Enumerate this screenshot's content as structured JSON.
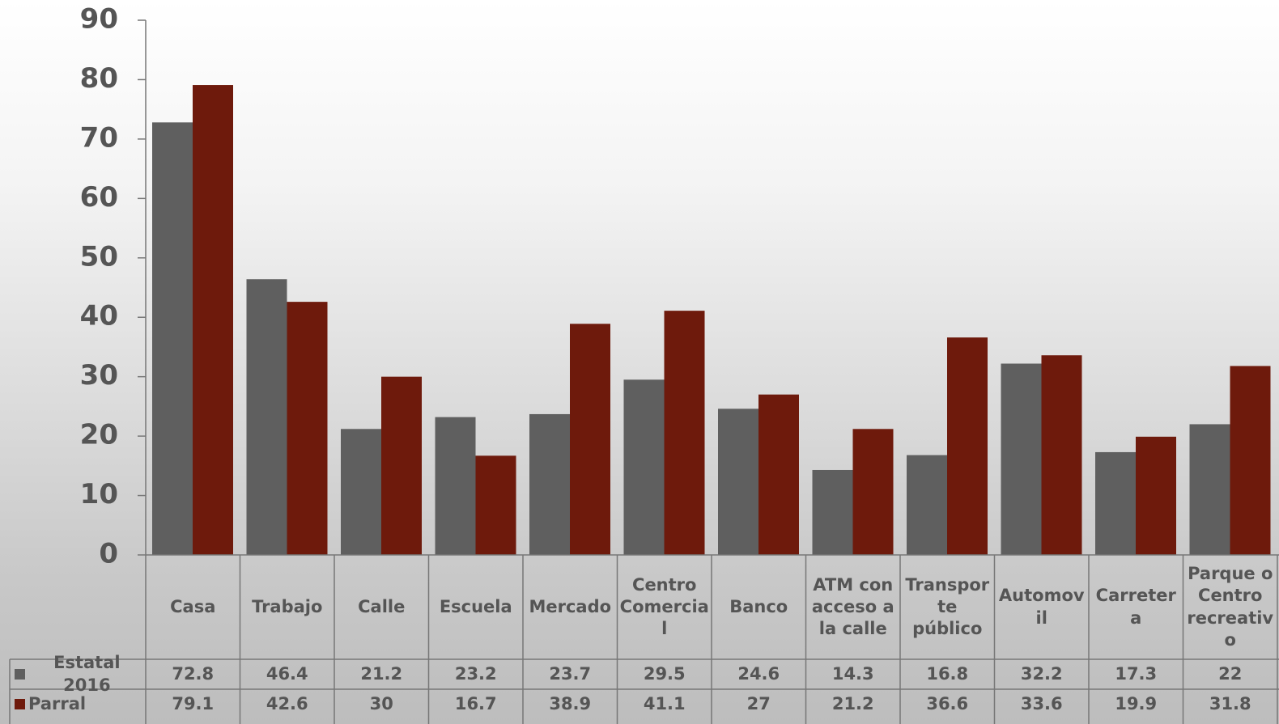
{
  "chart_data": {
    "type": "bar",
    "categories": [
      "Casa",
      "Trabajo",
      "Calle",
      "Escuela",
      "Mercado",
      "Centro Comercial",
      "Banco",
      "ATM con acceso a la calle",
      "Transporte público",
      "Automovil",
      "Carretera",
      "Parque o Centro recreativo"
    ],
    "series": [
      {
        "name": "Estatal 2016",
        "color": "#5f5f5f",
        "values": [
          72.8,
          46.4,
          21.2,
          23.2,
          23.7,
          29.5,
          24.6,
          14.3,
          16.8,
          32.2,
          17.3,
          22
        ]
      },
      {
        "name": "Parral",
        "color": "#6e1a0c",
        "values": [
          79.1,
          42.6,
          30,
          16.7,
          38.9,
          41.1,
          27,
          21.2,
          36.6,
          33.6,
          19.9,
          31.8
        ]
      }
    ],
    "ylim": [
      0,
      90
    ],
    "yticks": [
      0,
      10,
      20,
      30,
      40,
      50,
      60,
      70,
      80,
      90
    ]
  }
}
